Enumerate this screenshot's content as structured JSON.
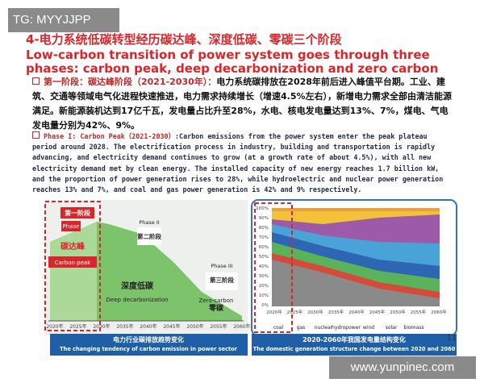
{
  "watermark_top": "TG: MYYJJPP",
  "watermark_bottom": "www.yunpinec.com",
  "page_number": "11",
  "header": {
    "title_cn": "4-电力系统低碳转型经历碳达峰、深度低碳、零碳三个阶段",
    "title_en": "Low-carbon transition of power system goes through three phases: carbon peak, deep decarbonization and zero carbon"
  },
  "body": {
    "cn_label": "第一阶段：碳达峰阶段（2021-2030年）：",
    "cn_text": "电力系统碳排放在2028年前后进入峰值平台期。工业、建筑、交通等领域电气化进程快速推进，电力需求持续增长（增速4.5%左右），新增电力需求全部由清洁能源满足。新能源装机达到17亿千瓦，发电量占比升至28%，水电、核电发电量达到13%、7%，煤电、气电发电量分别为42%、9%。",
    "en_label": "Phase I: Carbon Peak（2021-2030）",
    "en_text": ":Carbon emissions from the power system enter the peak plateau period around 2028. The electrification process in industry, building and transportation is rapidly advancing, and electricity demand continues to grow (at a growth rate of about 4.5%), with all new electricity demand met by clean energy. The installed capacity of new energy reaches 1.7 billion kW, and the proportion of power generation rises to 28%, while hydroelectric and nuclear power generation reaches 13% and 7%, and coal and gas power generation is 42% and 9% respectively."
  },
  "figures": {
    "left": {
      "labels": [
        "第一阶段",
        "Phase",
        "碳达峰",
        "Carbon peak",
        "Phase II",
        "第二阶段",
        "深度低碳",
        "Deep decarbonization",
        "Phase III",
        "第三阶段",
        "Zero-carbon",
        "零碳"
      ],
      "x_labels": [
        "2020年",
        "2025年",
        "2030年",
        "2035年",
        "2040年",
        "2045年",
        "2050年",
        "2055年",
        "2060年"
      ],
      "caption_cn": "电力行业碳排放趋势变化",
      "caption_en": "The changing tendency of carbon emission in power sector"
    },
    "right": {
      "y_labels": [
        "100%",
        "90%",
        "80%",
        "70%",
        "60%",
        "50%",
        "40%",
        "30%",
        "20%",
        "10%",
        "0%"
      ],
      "x_labels": [
        "2020年",
        "2025年",
        "2030年",
        "2035年",
        "2040年",
        "2045年",
        "2050年",
        "2055年",
        "2060年"
      ],
      "legend": [
        "coal",
        "gas",
        "nuclear",
        "hydropower",
        "wind",
        "solar",
        "biomass"
      ],
      "caption_cn": "2020-2060年我国发电量结构变化",
      "caption_en": "The domestic generation structure change between 2020 and 2060"
    }
  }
}
